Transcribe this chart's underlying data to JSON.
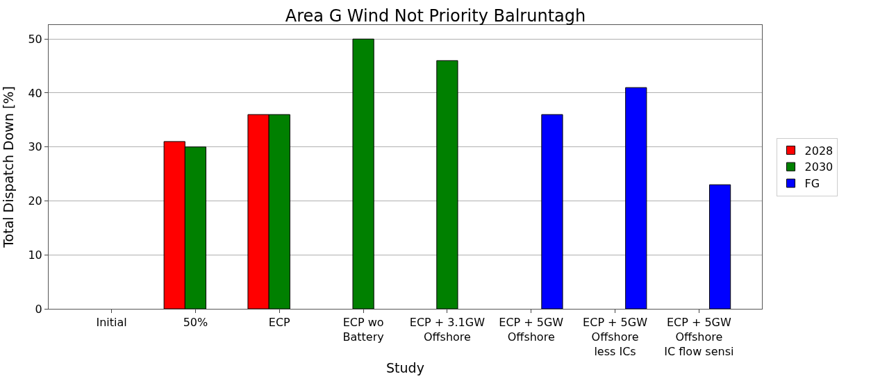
{
  "chart_data": {
    "type": "bar",
    "title": "Area G Wind Not Priority Balruntagh",
    "xlabel": "Study",
    "ylabel": "Total Dispatch Down [%]",
    "categories": [
      "Initial",
      "50%",
      "ECP",
      "ECP wo\nBattery",
      "ECP + 3.1GW\nOffshore",
      "ECP + 5GW\nOffshore",
      "ECP + 5GW\nOffshore\nless ICs",
      "ECP + 5GW\nOffshore\nIC flow sensi"
    ],
    "series": [
      {
        "name": "2028",
        "color": "#ff0000",
        "values": [
          null,
          31,
          36,
          null,
          null,
          null,
          null,
          null
        ]
      },
      {
        "name": "2030",
        "color": "#008000",
        "values": [
          null,
          30,
          36,
          50,
          46,
          null,
          null,
          null
        ]
      },
      {
        "name": "FG",
        "color": "#0000ff",
        "values": [
          null,
          null,
          null,
          null,
          null,
          36,
          41,
          23
        ]
      }
    ],
    "ylim": [
      0,
      52.6
    ],
    "yticks": [
      0,
      10,
      20,
      30,
      40,
      50
    ],
    "grid": "y",
    "legend": "right"
  }
}
